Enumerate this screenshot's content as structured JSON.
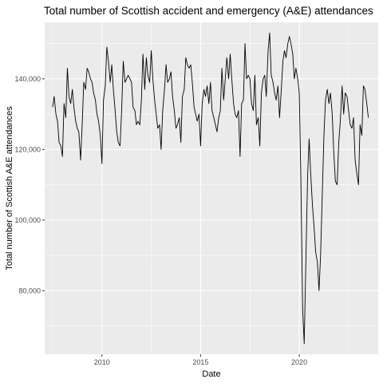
{
  "chart_data": {
    "type": "line",
    "title": "Total number of Scottish accident and emergency (A&E) attendances",
    "xlabel": "Date",
    "ylabel": "Total number of Scottish A&E attendances",
    "x_ticks": [
      "2010",
      "2015",
      "2020"
    ],
    "y_ticks": [
      "80,000",
      "100,000",
      "120,000",
      "140,000"
    ],
    "x_tick_values": [
      2010,
      2015,
      2020
    ],
    "y_tick_values": [
      80000,
      100000,
      120000,
      140000
    ],
    "xlim": [
      2007.1,
      2024.0
    ],
    "ylim": [
      62000,
      156000
    ],
    "grid": true,
    "legend": "none",
    "colors": {
      "panel": "#ebebeb",
      "grid": "#ffffff",
      "line": "#000000",
      "tick": "#333333"
    },
    "series": [
      {
        "x": [
          2007.5,
          2007.58,
          2007.67,
          2007.75,
          2007.83,
          2007.92,
          2008.0,
          2008.08,
          2008.17,
          2008.25,
          2008.33,
          2008.42,
          2008.5,
          2008.58,
          2008.67,
          2008.75,
          2008.83,
          2008.92,
          2009.0,
          2009.08,
          2009.17,
          2009.25,
          2009.33,
          2009.42,
          2009.5,
          2009.58,
          2009.67,
          2009.75,
          2009.83,
          2009.92,
          2010.0,
          2010.08,
          2010.17,
          2010.25,
          2010.33,
          2010.42,
          2010.5,
          2010.58,
          2010.67,
          2010.75,
          2010.83,
          2010.92,
          2011.0,
          2011.08,
          2011.17,
          2011.25,
          2011.33,
          2011.42,
          2011.5,
          2011.58,
          2011.67,
          2011.75,
          2011.83,
          2011.92,
          2012.0,
          2012.08,
          2012.17,
          2012.25,
          2012.33,
          2012.42,
          2012.5,
          2012.58,
          2012.67,
          2012.75,
          2012.83,
          2012.92,
          2013.0,
          2013.08,
          2013.17,
          2013.25,
          2013.33,
          2013.42,
          2013.5,
          2013.58,
          2013.67,
          2013.75,
          2013.83,
          2013.92,
          2014.0,
          2014.08,
          2014.17,
          2014.25,
          2014.33,
          2014.42,
          2014.5,
          2014.58,
          2014.67,
          2014.75,
          2014.83,
          2014.92,
          2015.0,
          2015.08,
          2015.17,
          2015.25,
          2015.33,
          2015.42,
          2015.5,
          2015.58,
          2015.67,
          2015.75,
          2015.83,
          2015.92,
          2016.0,
          2016.08,
          2016.17,
          2016.25,
          2016.33,
          2016.42,
          2016.5,
          2016.58,
          2016.67,
          2016.75,
          2016.83,
          2016.92,
          2017.0,
          2017.08,
          2017.17,
          2017.25,
          2017.33,
          2017.42,
          2017.5,
          2017.58,
          2017.67,
          2017.75,
          2017.83,
          2017.92,
          2018.0,
          2018.08,
          2018.17,
          2018.25,
          2018.33,
          2018.42,
          2018.5,
          2018.58,
          2018.67,
          2018.75,
          2018.83,
          2018.92,
          2019.0,
          2019.08,
          2019.17,
          2019.25,
          2019.33,
          2019.42,
          2019.5,
          2019.58,
          2019.67,
          2019.75,
          2019.83,
          2019.92,
          2020.0,
          2020.08,
          2020.17,
          2020.25,
          2020.33,
          2020.42,
          2020.5,
          2020.58,
          2020.67,
          2020.75,
          2020.83,
          2020.92,
          2021.0,
          2021.08,
          2021.17,
          2021.25,
          2021.33,
          2021.42,
          2021.5,
          2021.58,
          2021.67,
          2021.75,
          2021.83,
          2021.92,
          2022.0,
          2022.08,
          2022.17,
          2022.25,
          2022.33,
          2022.42,
          2022.5,
          2022.58,
          2022.67,
          2022.75,
          2022.83,
          2022.92,
          2023.0,
          2023.08,
          2023.17,
          2023.25,
          2023.33,
          2023.42,
          2023.5
        ],
        "values": [
          132000,
          135000,
          130000,
          128000,
          122000,
          121000,
          118000,
          133000,
          129000,
          143000,
          135000,
          133000,
          137000,
          132000,
          128000,
          126000,
          125000,
          117000,
          127000,
          139000,
          137000,
          143000,
          142000,
          140000,
          139000,
          136000,
          134000,
          130000,
          128000,
          124000,
          116000,
          134000,
          138000,
          149000,
          145000,
          139000,
          144000,
          137000,
          131000,
          125000,
          122000,
          121000,
          131000,
          145000,
          139000,
          140000,
          141000,
          140000,
          139000,
          132000,
          131000,
          127000,
          128000,
          127000,
          134000,
          147000,
          137000,
          146000,
          141000,
          139000,
          148000,
          140000,
          134000,
          130000,
          126000,
          127000,
          120000,
          131000,
          137000,
          144000,
          139000,
          140000,
          142000,
          135000,
          131000,
          126000,
          127000,
          129000,
          122000,
          135000,
          137000,
          146000,
          144000,
          143000,
          144000,
          139000,
          132000,
          130000,
          128000,
          130000,
          121000,
          133000,
          137000,
          135000,
          138000,
          133000,
          139000,
          131000,
          129000,
          127000,
          125000,
          129000,
          131000,
          143000,
          134000,
          140000,
          146000,
          140000,
          147000,
          140000,
          133000,
          130000,
          129000,
          131000,
          118000,
          133000,
          134000,
          150000,
          140000,
          141000,
          140000,
          133000,
          131000,
          141000,
          127000,
          129000,
          121000,
          136000,
          140000,
          141000,
          135000,
          148000,
          153000,
          141000,
          139000,
          136000,
          134000,
          138000,
          129000,
          136000,
          145000,
          148000,
          146000,
          150000,
          152000,
          150000,
          147000,
          140000,
          143000,
          140000,
          136000,
          112000,
          75000,
          65000,
          87000,
          112000,
          123000,
          113000,
          104000,
          98000,
          91000,
          88000,
          80000,
          90000,
          108000,
          124000,
          134000,
          137000,
          133000,
          136000,
          130000,
          119000,
          111000,
          110000,
          122000,
          128000,
          138000,
          130000,
          136000,
          135000,
          131000,
          127000,
          126000,
          129000,
          117000,
          113000,
          110000,
          127000,
          124000,
          138000,
          137000,
          133000,
          129000
        ]
      }
    ]
  }
}
